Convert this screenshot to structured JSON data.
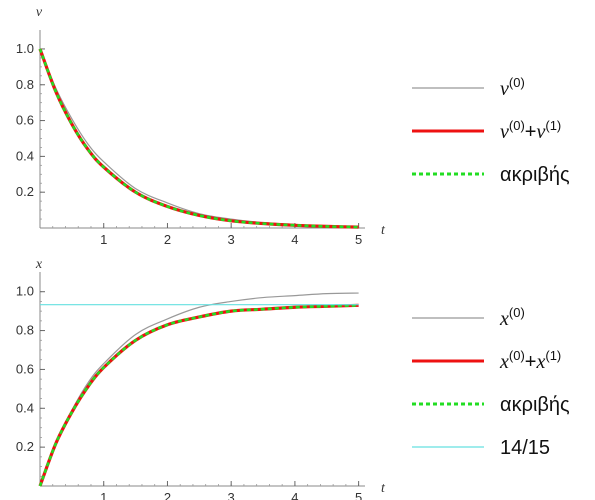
{
  "chart_data": [
    {
      "type": "line",
      "xlabel": "t",
      "ylabel": "v",
      "xlim": [
        0,
        5.1
      ],
      "ylim": [
        0,
        1.05
      ],
      "xticks": [
        "1",
        "2",
        "3",
        "4",
        "5"
      ],
      "yticks": [
        "0.2",
        "0.4",
        "0.6",
        "0.8",
        "1.0"
      ],
      "x": [
        0,
        0.25,
        0.5,
        0.75,
        1,
        1.5,
        2,
        2.5,
        3,
        3.5,
        4,
        4.5,
        5
      ],
      "series": [
        {
          "legend_base": "v",
          "legend_sup": "(0)",
          "color": "#999999",
          "y": [
            1.0,
            0.78,
            0.61,
            0.47,
            0.37,
            0.22,
            0.14,
            0.08,
            0.05,
            0.03,
            0.02,
            0.01,
            0.007
          ]
        },
        {
          "legend_base": "v",
          "legend_sup": "(0)",
          "legend_plus": "+",
          "legend_base2": "v",
          "legend_sup2": "(1)",
          "color": "#ee1111",
          "y": [
            1.0,
            0.76,
            0.58,
            0.44,
            0.34,
            0.2,
            0.12,
            0.07,
            0.04,
            0.025,
            0.015,
            0.009,
            0.005
          ]
        },
        {
          "name": "ακριβής",
          "color": "#22dd22",
          "dashed": true,
          "y": [
            1.0,
            0.76,
            0.58,
            0.44,
            0.34,
            0.2,
            0.12,
            0.07,
            0.04,
            0.025,
            0.015,
            0.009,
            0.005
          ]
        }
      ]
    },
    {
      "type": "line",
      "xlabel": "t",
      "ylabel": "x",
      "xlim": [
        0,
        5.1
      ],
      "ylim": [
        0,
        1.05
      ],
      "xticks": [
        "1",
        "2",
        "3",
        "4",
        "5"
      ],
      "yticks": [
        "0.2",
        "0.4",
        "0.6",
        "0.8",
        "1.0"
      ],
      "x": [
        0,
        0.25,
        0.5,
        0.75,
        1,
        1.5,
        2,
        2.5,
        3,
        3.5,
        4,
        4.5,
        5
      ],
      "series": [
        {
          "legend_base": "x",
          "legend_sup": "(0)",
          "color": "#999999",
          "y": [
            0,
            0.22,
            0.39,
            0.53,
            0.63,
            0.78,
            0.86,
            0.92,
            0.95,
            0.97,
            0.98,
            0.99,
            0.993
          ]
        },
        {
          "legend_base": "x",
          "legend_sup": "(0)",
          "legend_plus": "+",
          "legend_base2": "x",
          "legend_sup2": "(1)",
          "color": "#ee1111",
          "y": [
            0,
            0.22,
            0.38,
            0.51,
            0.61,
            0.75,
            0.83,
            0.87,
            0.9,
            0.91,
            0.92,
            0.925,
            0.93
          ]
        },
        {
          "name": "ακριβής",
          "color": "#22dd22",
          "dashed": true,
          "y": [
            0,
            0.22,
            0.38,
            0.51,
            0.61,
            0.75,
            0.83,
            0.87,
            0.9,
            0.91,
            0.92,
            0.925,
            0.93
          ]
        },
        {
          "name": "14/15",
          "color": "#66e0e0",
          "constant": 0.9333
        }
      ]
    }
  ]
}
